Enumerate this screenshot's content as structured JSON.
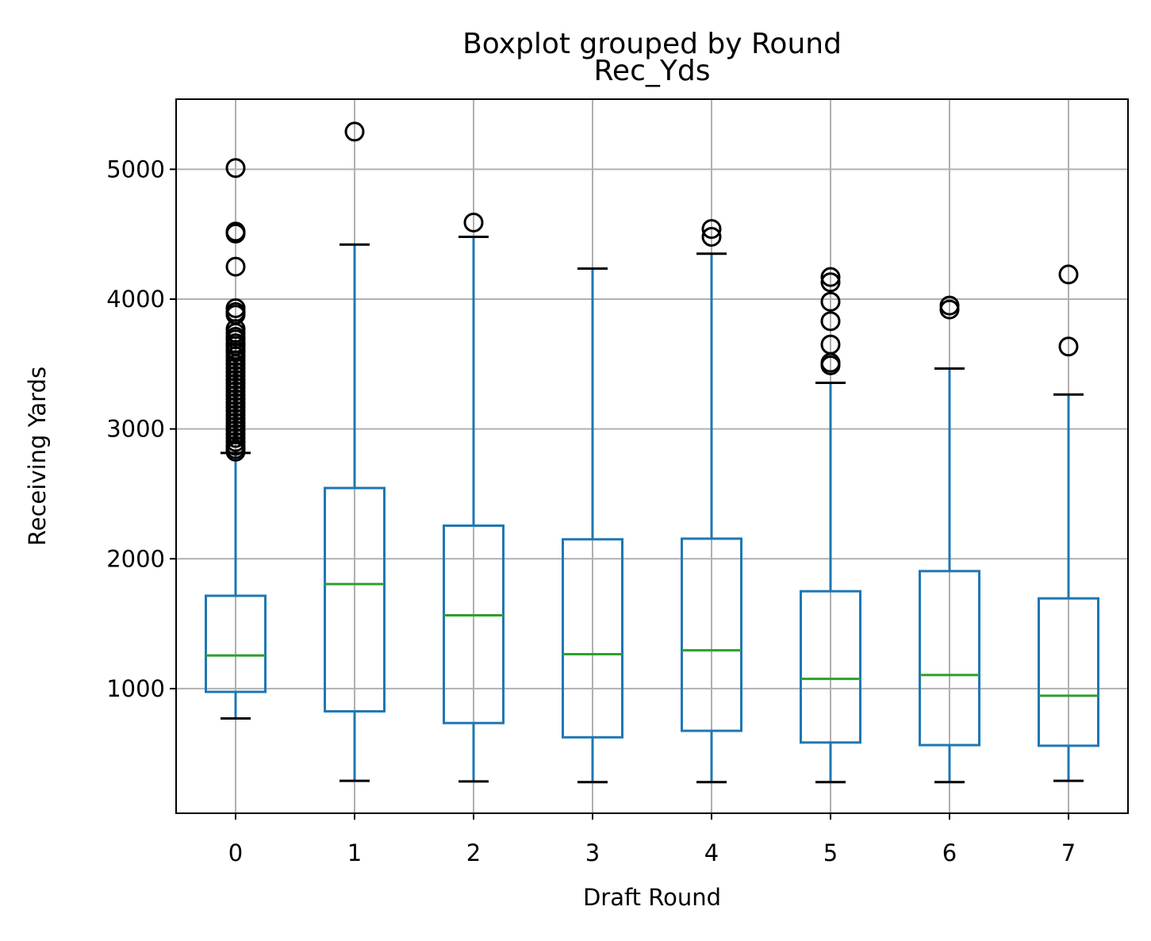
{
  "chart_data": {
    "type": "boxplot",
    "suptitle": "Boxplot grouped by Round",
    "title": "Rec_Yds",
    "xlabel": "Draft Round",
    "ylabel": "Receiving Yards",
    "grid": true,
    "ylim": [
      40,
      5540
    ],
    "yticks": [
      1000,
      2000,
      3000,
      4000,
      5000
    ],
    "yticklabels": [
      "1000",
      "2000",
      "3000",
      "4000",
      "5000"
    ],
    "categories": [
      "0",
      "1",
      "2",
      "3",
      "4",
      "5",
      "6",
      "7"
    ],
    "colors": {
      "box": "#1f77b4",
      "median": "#2ca02c",
      "cap": "#000000",
      "outlier": "#000000",
      "grid": "#b0b0b0"
    },
    "boxes": [
      {
        "label": "0",
        "whislo": 770,
        "q1": 975,
        "med": 1255,
        "q3": 1715,
        "whishi": 2815,
        "fliers": [
          5010,
          4520,
          4505,
          4250,
          3930,
          3900,
          3880,
          3770,
          3740,
          3710,
          3690,
          3660,
          3640,
          3610,
          3590,
          3560,
          3530,
          3500,
          3470,
          3440,
          3410,
          3380,
          3350,
          3320,
          3290,
          3260,
          3230,
          3200,
          3170,
          3140,
          3110,
          3080,
          3050,
          3020,
          2990,
          2960,
          2930,
          2900,
          2870,
          2845,
          2825
        ]
      },
      {
        "label": "1",
        "whislo": 290,
        "q1": 825,
        "med": 1805,
        "q3": 2545,
        "whishi": 4420,
        "fliers": [
          5290
        ]
      },
      {
        "label": "2",
        "whislo": 285,
        "q1": 735,
        "med": 1565,
        "q3": 2255,
        "whishi": 4480,
        "fliers": [
          4590
        ]
      },
      {
        "label": "3",
        "whislo": 280,
        "q1": 625,
        "med": 1265,
        "q3": 2150,
        "whishi": 4235,
        "fliers": []
      },
      {
        "label": "4",
        "whislo": 280,
        "q1": 675,
        "med": 1295,
        "q3": 2155,
        "whishi": 4350,
        "fliers": [
          4540,
          4480
        ]
      },
      {
        "label": "5",
        "whislo": 280,
        "q1": 585,
        "med": 1075,
        "q3": 1750,
        "whishi": 3355,
        "fliers": [
          4170,
          4130,
          3980,
          3830,
          3650,
          3510,
          3490
        ]
      },
      {
        "label": "6",
        "whislo": 280,
        "q1": 565,
        "med": 1105,
        "q3": 1905,
        "whishi": 3465,
        "fliers": [
          3950,
          3920
        ]
      },
      {
        "label": "7",
        "whislo": 290,
        "q1": 560,
        "med": 945,
        "q3": 1695,
        "whishi": 3265,
        "fliers": [
          4190,
          3635
        ]
      }
    ]
  }
}
